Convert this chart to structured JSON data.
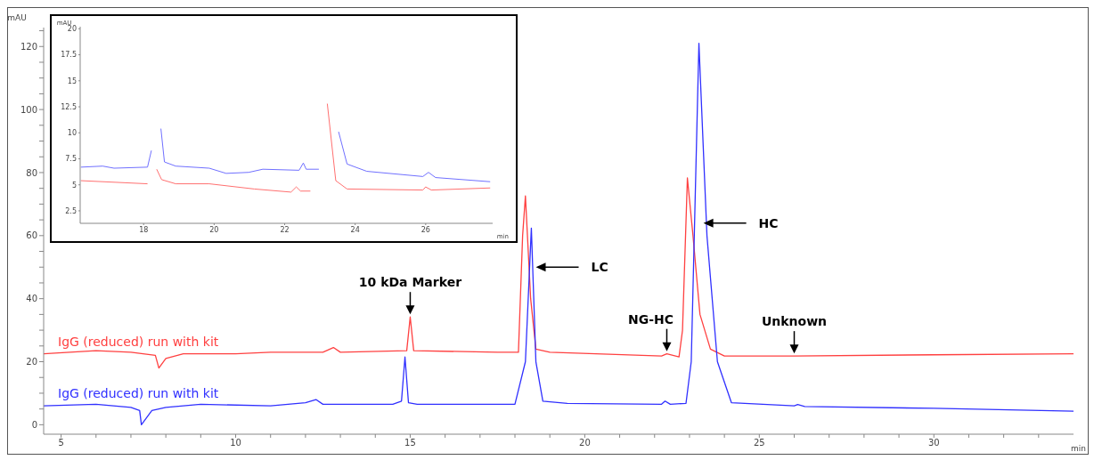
{
  "chart_data": [
    {
      "type": "line",
      "xlabel": "min",
      "ylabel": "mAU",
      "xlim": [
        4.5,
        34
      ],
      "xticks": [
        5,
        {
          "value": 6,
          "label": null
        },
        {
          "value": 7,
          "label": null
        },
        {
          "value": 8,
          "label": null
        },
        {
          "value": 9,
          "label": null
        },
        10,
        {
          "value": 11,
          "label": null
        },
        {
          "value": 12,
          "label": null
        },
        {
          "value": 13,
          "label": null
        },
        {
          "value": 14,
          "label": null
        },
        15,
        {
          "value": 16,
          "label": null
        },
        {
          "value": 17,
          "label": null
        },
        {
          "value": 18,
          "label": null
        },
        {
          "value": 19,
          "label": null
        },
        20,
        {
          "value": 21,
          "label": null
        },
        {
          "value": 22,
          "label": null
        },
        {
          "value": 23,
          "label": null
        },
        {
          "value": 24,
          "label": null
        },
        25,
        {
          "value": 26,
          "label": null
        },
        {
          "value": 27,
          "label": null
        },
        {
          "value": 28,
          "label": null
        },
        {
          "value": 29,
          "label": null
        },
        30,
        {
          "value": 31,
          "label": null
        },
        {
          "value": 32,
          "label": null
        },
        {
          "value": 33,
          "label": null
        }
      ],
      "ylim": [
        -3,
        126
      ],
      "yticks": [
        0,
        {
          "value": 5,
          "label": null
        },
        {
          "value": 10,
          "label": null
        },
        {
          "value": 15,
          "label": null
        },
        20,
        {
          "value": 25,
          "label": null
        },
        {
          "value": 30,
          "label": null
        },
        {
          "value": 35,
          "label": null
        },
        40,
        {
          "value": 45,
          "label": null
        },
        {
          "value": 50,
          "label": null
        },
        {
          "value": 55,
          "label": null
        },
        60,
        {
          "value": 65,
          "label": null
        },
        {
          "value": 70,
          "label": null
        },
        {
          "value": 75,
          "label": null
        },
        80,
        {
          "value": 85,
          "label": null
        },
        {
          "value": 90,
          "label": null
        },
        {
          "value": 95,
          "label": null
        },
        100,
        {
          "value": 105,
          "label": null
        },
        {
          "value": 110,
          "label": null
        },
        {
          "value": 115,
          "label": null
        },
        120,
        {
          "value": 125,
          "label": null
        }
      ],
      "grid": false,
      "legend": false,
      "marker": "none",
      "line_style": "solid",
      "series": [
        {
          "name": "IgG (reduced) run with kit",
          "color": "#ff4040",
          "x": [
            4.5,
            6,
            7.0,
            7.7,
            7.8,
            8.0,
            8.5,
            10,
            11,
            12.5,
            12.8,
            13,
            14.9,
            15.0,
            15.1,
            17.5,
            18.1,
            18.22,
            18.3,
            18.45,
            18.6,
            19,
            22.2,
            22.35,
            22.7,
            22.8,
            22.94,
            23.1,
            23.3,
            23.6,
            24,
            26,
            30,
            34
          ],
          "values": [
            22.5,
            23.5,
            23,
            22,
            18,
            21,
            22.5,
            22.5,
            23,
            23,
            24.5,
            23,
            23.5,
            34.2,
            23.5,
            23,
            23,
            60,
            72.6,
            40,
            24,
            23,
            21.8,
            22.5,
            21.5,
            30,
            78.3,
            60,
            35,
            24,
            21.8,
            21.8,
            22.2,
            22.5
          ]
        },
        {
          "name": "IgG (reduced) run with kit",
          "color": "#3030ff",
          "x": [
            4.5,
            6,
            7.0,
            7.25,
            7.3,
            7.6,
            8,
            9,
            11,
            12,
            12.3,
            12.5,
            14.5,
            14.75,
            14.85,
            14.95,
            15.2,
            18.0,
            18.3,
            18.47,
            18.6,
            18.8,
            19.5,
            22.2,
            22.3,
            22.45,
            22.9,
            23.05,
            23.27,
            23.5,
            23.8,
            24.2,
            26,
            26.1,
            26.3,
            30,
            34
          ],
          "values": [
            6.0,
            6.5,
            5.5,
            4.5,
            0,
            4.5,
            5.5,
            6.5,
            6.0,
            7.0,
            8.0,
            6.5,
            6.5,
            7.5,
            21.5,
            7,
            6.5,
            6.5,
            20,
            62.4,
            20,
            7.5,
            6.8,
            6.5,
            7.5,
            6.5,
            6.8,
            20,
            121,
            60,
            20,
            7,
            6.0,
            6.4,
            5.8,
            5.2,
            4.3
          ]
        }
      ],
      "annotations": [
        {
          "text": "10 kDa Marker",
          "x": 15,
          "y": 34.2
        },
        {
          "text": "LC",
          "x": 18.6,
          "y": 50
        },
        {
          "text": "NG-HC",
          "x": 22.35,
          "y": 22.5
        },
        {
          "text": "HC",
          "x": 23.4,
          "y": 64
        },
        {
          "text": "Unknown",
          "x": 26,
          "y": 21.8
        }
      ]
    },
    {
      "type": "line",
      "xlabel": "min",
      "ylabel": "mAU",
      "xlim": [
        16.2,
        27.9
      ],
      "xticks": [
        18,
        20,
        22,
        24,
        26
      ],
      "ylim": [
        1.3,
        20.2
      ],
      "yticks": [
        2.5,
        5,
        7.5,
        10,
        12.5,
        15,
        17.5,
        20
      ],
      "grid": false,
      "legend": false,
      "marker": "none",
      "line_style": "solid",
      "series": [
        {
          "color": "#ff7070",
          "x": [
            16.22,
            18.11,
            18.18,
            18.33,
            18.37,
            18.51,
            18.91,
            19.86,
            21.14,
            22.18,
            22.33,
            22.45,
            22.73,
            22.81,
            23.09,
            23.21,
            23.45,
            23.77,
            25.92,
            26.0,
            26.16,
            27.83
          ],
          "values": [
            5.4,
            5.1,
            null,
            null,
            6.5,
            5.5,
            5.1,
            5.1,
            4.6,
            4.3,
            4.8,
            4.4,
            4.4,
            null,
            null,
            12.8,
            5.4,
            4.6,
            4.5,
            4.8,
            4.5,
            4.7
          ]
        },
        {
          "color": "#7070ff",
          "x": [
            16.22,
            16.84,
            17.16,
            18.11,
            18.22,
            18.25,
            18.45,
            18.49,
            18.59,
            18.91,
            19.86,
            20.34,
            20.98,
            21.38,
            22.41,
            22.53,
            22.61,
            22.97,
            23.09,
            23.41,
            23.53,
            23.77,
            24.33,
            25.92,
            26.08,
            26.28,
            27.83
          ],
          "values": [
            6.7,
            6.8,
            6.6,
            6.7,
            8.3,
            null,
            null,
            10.4,
            7.2,
            6.8,
            6.6,
            6.1,
            6.2,
            6.5,
            6.4,
            7.1,
            6.5,
            6.5,
            null,
            null,
            10.1,
            7.0,
            6.3,
            5.8,
            6.2,
            5.7,
            5.3
          ]
        }
      ]
    }
  ]
}
